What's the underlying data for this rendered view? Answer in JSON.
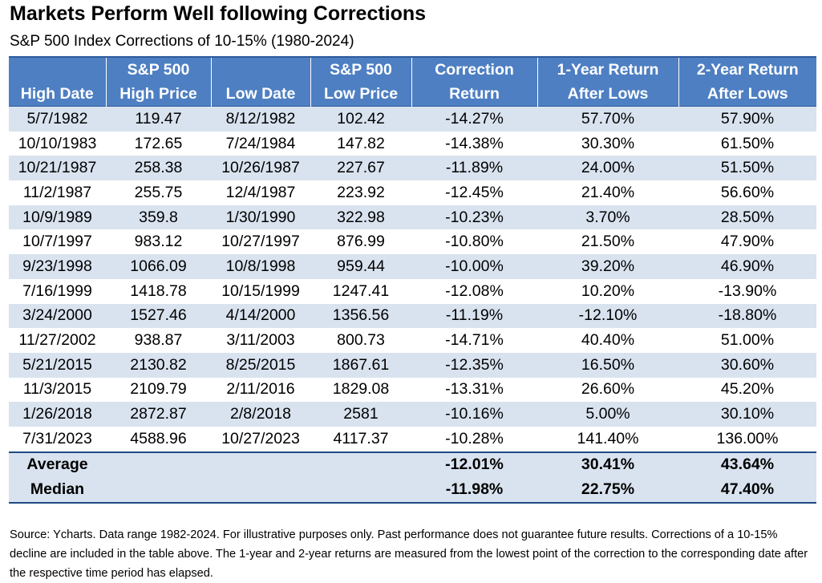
{
  "chart_data": {
    "type": "table",
    "title": "Markets Perform Well following Corrections",
    "subtitle": "S&P 500 Index Corrections of 10-15% (1980-2024)",
    "columns": [
      [
        "",
        "High Date"
      ],
      [
        "S&P 500",
        "High Price"
      ],
      [
        "",
        "Low Date"
      ],
      [
        "S&P 500",
        "Low Price"
      ],
      [
        "Correction",
        "Return"
      ],
      [
        "1-Year Return",
        "After Lows"
      ],
      [
        "2-Year Return",
        "After Lows"
      ]
    ],
    "rows": [
      [
        "5/7/1982",
        "119.47",
        "8/12/1982",
        "102.42",
        "-14.27%",
        "57.70%",
        "57.90%"
      ],
      [
        "10/10/1983",
        "172.65",
        "7/24/1984",
        "147.82",
        "-14.38%",
        "30.30%",
        "61.50%"
      ],
      [
        "10/21/1987",
        "258.38",
        "10/26/1987",
        "227.67",
        "-11.89%",
        "24.00%",
        "51.50%"
      ],
      [
        "11/2/1987",
        "255.75",
        "12/4/1987",
        "223.92",
        "-12.45%",
        "21.40%",
        "56.60%"
      ],
      [
        "10/9/1989",
        "359.8",
        "1/30/1990",
        "322.98",
        "-10.23%",
        "3.70%",
        "28.50%"
      ],
      [
        "10/7/1997",
        "983.12",
        "10/27/1997",
        "876.99",
        "-10.80%",
        "21.50%",
        "47.90%"
      ],
      [
        "9/23/1998",
        "1066.09",
        "10/8/1998",
        "959.44",
        "-10.00%",
        "39.20%",
        "46.90%"
      ],
      [
        "7/16/1999",
        "1418.78",
        "10/15/1999",
        "1247.41",
        "-12.08%",
        "10.20%",
        "-13.90%"
      ],
      [
        "3/24/2000",
        "1527.46",
        "4/14/2000",
        "1356.56",
        "-11.19%",
        "-12.10%",
        "-18.80%"
      ],
      [
        "11/27/2002",
        "938.87",
        "3/11/2003",
        "800.73",
        "-14.71%",
        "40.40%",
        "51.00%"
      ],
      [
        "5/21/2015",
        "2130.82",
        "8/25/2015",
        "1867.61",
        "-12.35%",
        "16.50%",
        "30.60%"
      ],
      [
        "11/3/2015",
        "2109.79",
        "2/11/2016",
        "1829.08",
        "-13.31%",
        "26.60%",
        "45.20%"
      ],
      [
        "1/26/2018",
        "2872.87",
        "2/8/2018",
        "2581",
        "-10.16%",
        "5.00%",
        "30.10%"
      ],
      [
        "7/31/2023",
        "4588.96",
        "10/27/2023",
        "4117.37",
        "-10.28%",
        "141.40%",
        "136.00%"
      ]
    ],
    "summary": [
      [
        "Average",
        "",
        "",
        "",
        "-12.01%",
        "30.41%",
        "43.64%"
      ],
      [
        "Median",
        "",
        "",
        "",
        "-11.98%",
        "22.75%",
        "47.40%"
      ]
    ],
    "stripe_color": "#d9e3ef",
    "header_color": "#4e7fc2"
  },
  "footnote": "Source: Ycharts. Data range 1982-2024. For illustrative purposes only. Past performance does not guarantee future results. Corrections of a 10-15% decline are included in the table above. The 1-year and 2-year returns are measured from the lowest point of the correction to the corresponding date after the respective time period has elapsed."
}
